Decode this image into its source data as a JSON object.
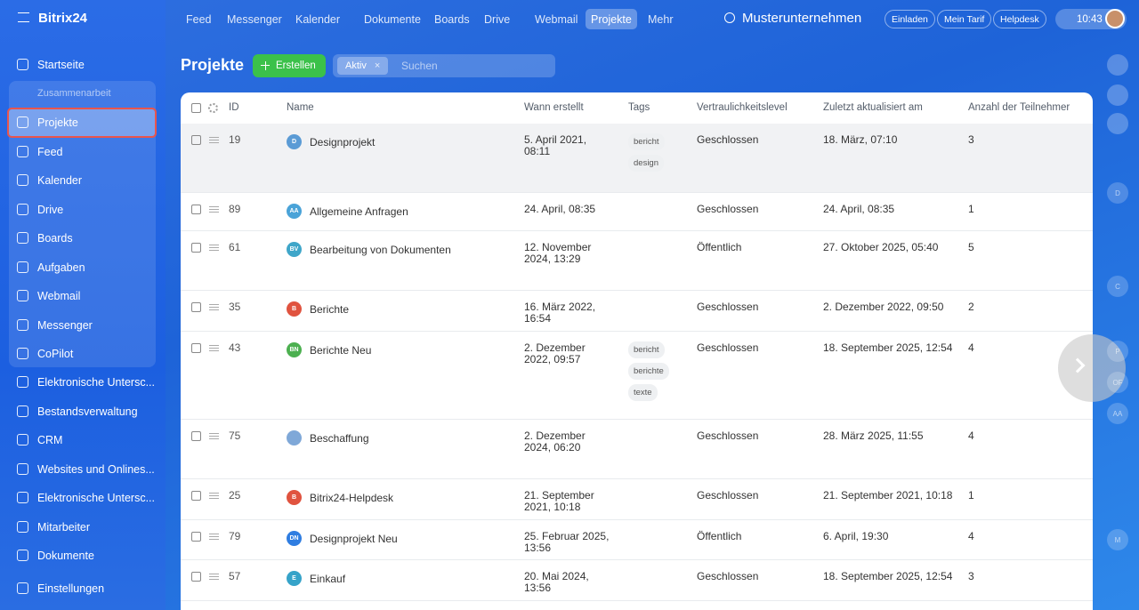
{
  "header": {
    "logo": "Bitrix24",
    "nav": [
      "Feed",
      "Messenger",
      "Kalender",
      "Dokumente",
      "Boards",
      "Drive",
      "Webmail",
      "Projekte",
      "Mehr"
    ],
    "company": "Musterunternehmen",
    "buttons": [
      "Einladen",
      "Mein Tarif",
      "Helpdesk"
    ],
    "time": "10:43"
  },
  "sidebar": {
    "top": [
      "Startseite"
    ],
    "group": {
      "label": "Zusammenarbeit",
      "items": [
        "Projekte",
        "Feed",
        "Kalender",
        "Drive",
        "Boards",
        "Aufgaben",
        "Webmail",
        "Messenger",
        "CoPilot"
      ]
    },
    "bottom": [
      "Elektronische Untersc...",
      "Bestandsverwaltung",
      "CRM",
      "Websites und Onlines...",
      "Elektronische Untersc...",
      "Mitarbeiter",
      "Dokumente",
      "Einstellungen"
    ]
  },
  "toolbar": {
    "title": "Projekte",
    "create": "Erstellen",
    "filter": "Aktiv",
    "search": "Suchen"
  },
  "table": {
    "columns": [
      "ID",
      "Name",
      "Wann erstellt",
      "Tags",
      "Vertraulichkeitslevel",
      "Zuletzt aktualisiert am",
      "Anzahl der Teilnehmer"
    ],
    "rows": [
      {
        "id": 19,
        "initials": "D",
        "name": "Designprojekt",
        "created": "5. April 2021, 08:11",
        "tags": [
          "bericht",
          "design"
        ],
        "level": "Geschlossen",
        "updated": "18. März, 07:10",
        "members": 3
      },
      {
        "id": 89,
        "initials": "AA",
        "name": "Allgemeine Anfragen",
        "created": "24. April, 08:35",
        "tags": [],
        "level": "Geschlossen",
        "updated": "24. April, 08:35",
        "members": 1
      },
      {
        "id": 61,
        "initials": "BV",
        "name": "Bearbeitung von Dokumenten",
        "created": "12. November 2024, 13:29",
        "tags": [],
        "level": "Öffentlich",
        "updated": "27. Oktober 2025, 05:40",
        "members": 5
      },
      {
        "id": 35,
        "initials": "B",
        "name": "Berichte",
        "created": "16. März 2022, 16:54",
        "tags": [],
        "level": "Geschlossen",
        "updated": "2. Dezember 2022, 09:50",
        "members": 2
      },
      {
        "id": 43,
        "initials": "BN",
        "name": "Berichte Neu",
        "created": "2. Dezember 2022, 09:57",
        "tags": [
          "bericht",
          "berichte",
          "texte"
        ],
        "level": "Geschlossen",
        "updated": "18. September 2025, 12:54",
        "members": 4
      },
      {
        "id": 75,
        "initials": "",
        "name": "Beschaffung",
        "created": "2. Dezember 2024, 06:20",
        "tags": [],
        "level": "Geschlossen",
        "updated": "28. März 2025, 11:55",
        "members": 4
      },
      {
        "id": 25,
        "initials": "B",
        "name": "Bitrix24-Helpdesk",
        "created": "21. September 2021, 10:18",
        "tags": [],
        "level": "Geschlossen",
        "updated": "21. September 2021, 10:18",
        "members": 1
      },
      {
        "id": 79,
        "initials": "DN",
        "name": "Designprojekt Neu",
        "created": "25. Februar 2025, 13:56",
        "tags": [],
        "level": "Öffentlich",
        "updated": "6. April, 19:30",
        "members": 4
      },
      {
        "id": 57,
        "initials": "E",
        "name": "Einkauf",
        "created": "20. Mai 2024, 13:56",
        "tags": [],
        "level": "Geschlossen",
        "updated": "18. September 2025, 12:54",
        "members": 3
      }
    ]
  },
  "rail": [
    "D",
    "C",
    "P",
    "OF",
    "AA",
    "M"
  ]
}
